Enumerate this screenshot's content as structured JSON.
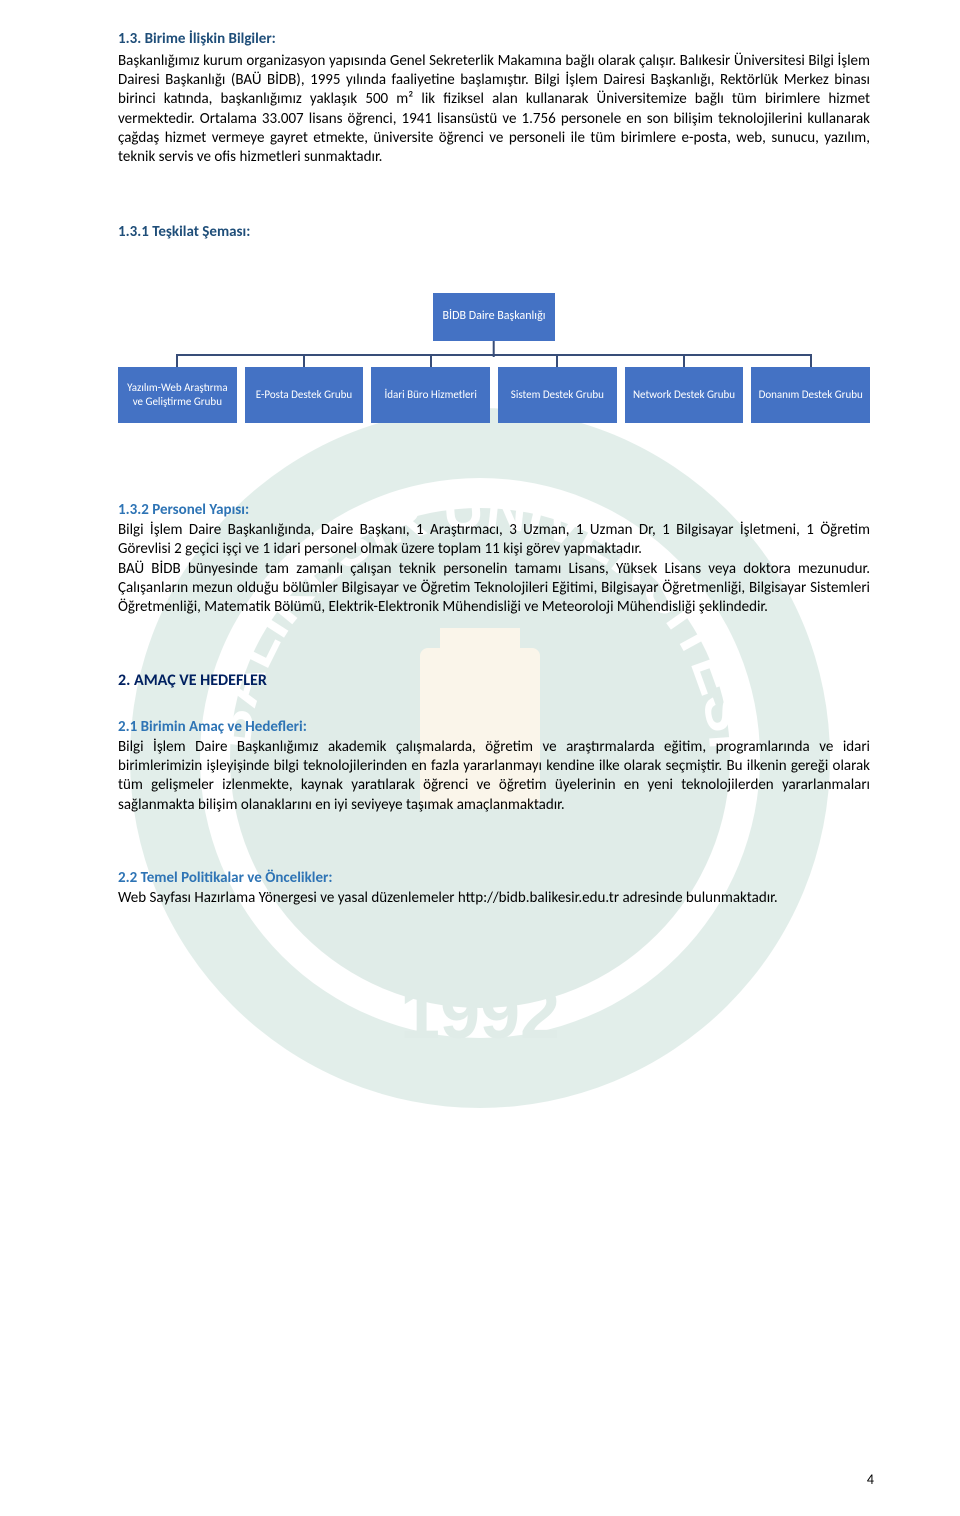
{
  "section1": {
    "heading": "1.3. Birime İlişkin Bilgiler:",
    "text": "Başkanlığımız kurum organizasyon yapısında Genel Sekreterlik Makamına bağlı olarak çalışır. Balıkesir Üniversitesi Bilgi İşlem Dairesi Başkanlığı (BAÜ BİDB), 1995 yılında faaliyetine başlamıştır. Bilgi İşlem Dairesi Başkanlığı, Rektörlük Merkez binası birinci katında, başkanlığımız yaklaşık 500 m² lik fiziksel alan kullanarak Üniversitemize bağlı tüm birimlere hizmet vermektedir. Ortalama 33.007 lisans öğrenci, 1941 lisansüstü ve 1.756 personele en son bilişim teknolojilerini kullanarak çağdaş hizmet vermeye gayret etmekte, üniversite öğrenci ve personeli ile tüm birimlere e-posta, web, sunucu, yazılım, teknik servis ve ofis hizmetleri sunmaktadır."
  },
  "section2": {
    "heading": "1.3.1 Teşkilat Şeması:"
  },
  "org": {
    "top": "BİDB Daire Başkanlığı",
    "children": [
      "Yazılım-Web Araştırma ve Geliştirme Grubu",
      "E-Posta Destek Grubu",
      "İdari Büro Hizmetleri",
      "Sistem Destek Grubu",
      "Network Destek Grubu",
      "Donanım Destek Grubu"
    ],
    "colors": {
      "box_bg": "#4472c4",
      "box_fg": "#ffffff",
      "line": "#384d78"
    }
  },
  "section3": {
    "heading": "1.3.2 Personel Yapısı:",
    "text": "Bilgi İşlem Daire Başkanlığında,  Daire Başkanı, 1 Araştırmacı, 3 Uzman, 1 Uzman Dr, 1 Bilgisayar İşletmeni, 1 Öğretim Görevlisi 2 geçici işçi ve 1 idari personel olmak üzere toplam 11 kişi görev yapmaktadır.\nBAÜ BİDB bünyesinde tam zamanlı çalışan teknik personelin tamamı Lisans, Yüksek Lisans veya doktora mezunudur. Çalışanların mezun olduğu bölümler Bilgisayar ve Öğretim Teknolojileri Eğitimi, Bilgisayar Öğretmenliği, Bilgisayar Sistemleri Öğretmenliği, Matematik Bölümü, Elektrik-Elektronik Mühendisliği ve Meteoroloji Mühendisliği şeklindedir."
  },
  "section4": {
    "heading": "2. AMAÇ VE HEDEFLER"
  },
  "section5": {
    "heading": "2.1 Birimin Amaç ve Hedefleri:",
    "text": "Bilgi İşlem Daire Başkanlığımız akademik çalışmalarda, öğretim ve araştırmalarda eğitim, programlarında ve idari birimlerimizin işleyişinde bilgi teknolojilerinden en fazla yararlanmayı kendine ilke olarak seçmiştir. Bu ilkenin gereği olarak tüm gelişmeler izlenmekte, kaynak yaratılarak öğrenci ve öğretim üyelerinin en yeni teknolojilerden yararlanmaları sağlanmakta bilişim olanaklarını en iyi seviyeye taşımak amaçlanmaktadır."
  },
  "section6": {
    "heading": "2.2 Temel Politikalar ve Öncelikler:",
    "text": "Web Sayfası Hazırlama Yönergesi ve yasal düzenlemeler http://bidb.balikesir.edu.tr adresinde bulunmaktadır."
  },
  "pageNumber": "4",
  "watermark": {
    "ring_outer": "#1a7a5a",
    "ring_inner": "#ffffff",
    "center": "#0e6b4d",
    "year": "1992",
    "top_text": "BALIKESİR ÜNİVERSİTESİ"
  }
}
